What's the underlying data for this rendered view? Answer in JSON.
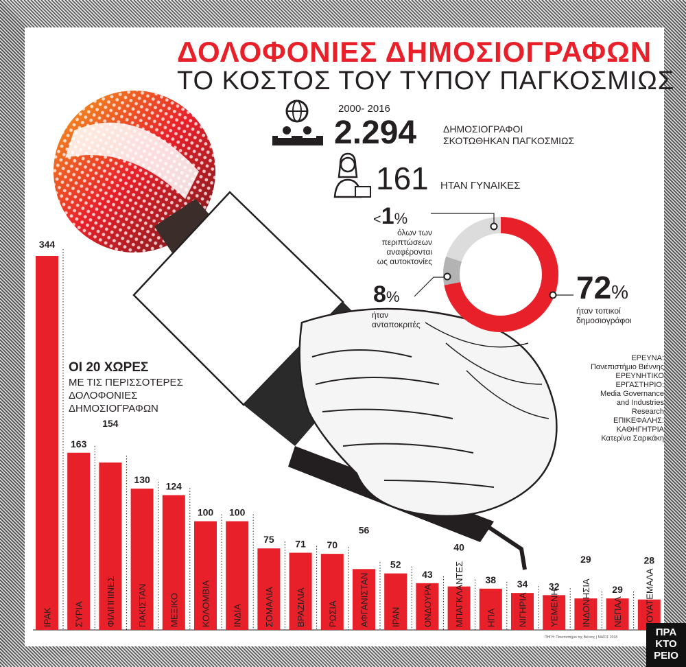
{
  "header": {
    "title": "ΔΟΛΟΦΟΝΙΕΣ ΔΗΜΟΣΙΟΓΡΑΦΩΝ",
    "subtitle": "ΤΟ ΚΟΣΤΟΣ ΤΟΥ ΤΥΠΟΥ ΠΑΓΚΟΣΜΙΩΣ"
  },
  "stats": {
    "years": "2000- 2016",
    "total": "2.294",
    "total_note_line1": "ΔΗΜΟΣΙΟΓΡΑΦΟΙ",
    "total_note_line2": "ΣΚΟΤΩΘΗΚΑΝ ΠΑΓΚΟΣΜΙΩΣ",
    "women": "161",
    "women_note": "ΗΤΑΝ ΓΥΝΑΙΚΕΣ"
  },
  "donut": {
    "lt1_prefix": "<",
    "lt1_num": "1",
    "lt1_unit": "%",
    "lt1_note": [
      "όλων των",
      "περιπτώσεων",
      "αναφέρονται",
      "ως αυτοκτονίες"
    ],
    "p8_num": "8",
    "p8_unit": "%",
    "p8_note": [
      "ήταν",
      "ανταποκριτές"
    ],
    "p72_num": "72",
    "p72_unit": "%",
    "p72_note": [
      "ήταν τοπικοί",
      "δημοσιογράφοι"
    ],
    "values": [
      72,
      8,
      1
    ],
    "colors": {
      "local": "#e8202a",
      "correspondents": "#b3b3b3",
      "rest": "#dcdcdc"
    }
  },
  "ranking": {
    "title": "ΟΙ 20 ΧΩΡΕΣ",
    "sub_line1": "ΜΕ ΤΙΣ ΠΕΡΙΣΣΟΤΕΡΕΣ",
    "sub_line2": "ΔΟΛΟΦΟΝΙΕΣ",
    "sub_line3": "ΔΗΜΟΣΙΟΓΡΑΦΩΝ"
  },
  "credits": {
    "lines": [
      "ΕΡΕΥΝΑ:",
      "Πανεπιστήμιο Βιέννης",
      "ΕΡΕΥΝΗΤΙΚΟ",
      "ΕΡΓΑΣΤΗΡΙΟ:",
      "Media Governance",
      "and Industries",
      "Research",
      "ΕΠΙΚΕΦΑΛΗΣ:",
      "ΚΑΘΗΓΗΤΡΙΑ",
      "Κατερίνα Σαρικάκη"
    ]
  },
  "footer": {
    "source": "ΠΗΓΗ: Πανεπιστήμιο της Βιέννης | ΜΑΪΟΣ 2018",
    "logo_lines": [
      "ΠΡΑ",
      "ΚΤΟ",
      "ΡΕΙΟ"
    ]
  },
  "colors": {
    "accent": "#e8202a",
    "text": "#231f20"
  },
  "icons": [
    "globe-press-icon",
    "woman-journalist-icon",
    "microphone-hand-illustration"
  ],
  "chart_data": {
    "type": "bar",
    "title": "ΟΙ 20 ΧΩΡΕΣ ΜΕ ΤΙΣ ΠΕΡΙΣΣΟΤΕΡΕΣ ΔΟΛΟΦΟΝΙΕΣ ΔΗΜΟΣΙΟΓΡΑΦΩΝ",
    "categories": [
      "ΙΡΑΚ",
      "ΣΥΡΙΑ",
      "ΦΙΛΙΠΠΙΝΕΣ",
      "ΠΑΚΙΣΤΑΝ",
      "ΜΕΞΙΚΟ",
      "ΚΟΛΟΜΒΙΑ",
      "ΙΝΔΙΑ",
      "ΣΟΜΑΛΙΑ",
      "ΒΡΑΖΙΛΙΑ",
      "ΡΩΣΙΑ",
      "ΑΦΓΑΝΙΣΤΑΝ",
      "ΙΡΑΝ",
      "ΟΝΔΟΥΡΑ",
      "ΜΠΑΓΚΛΑΝΤΕΣ",
      "ΗΠΑ",
      "ΝΙΓΗΡΙΑ",
      "ΥΕΜΕΝΗ",
      "ΙΝΔΟΝΗΣΙΑ",
      "ΝΕΠΑΛ",
      "ΓΟΥΑΤΕΜΑΛΑ"
    ],
    "values": [
      344,
      163,
      154,
      130,
      124,
      100,
      100,
      75,
      71,
      70,
      56,
      52,
      43,
      40,
      38,
      34,
      32,
      29,
      29,
      28
    ],
    "xlabel": "",
    "ylabel": "",
    "ylim": [
      0,
      344
    ],
    "grid": false,
    "bar_color": "#e8202a"
  }
}
